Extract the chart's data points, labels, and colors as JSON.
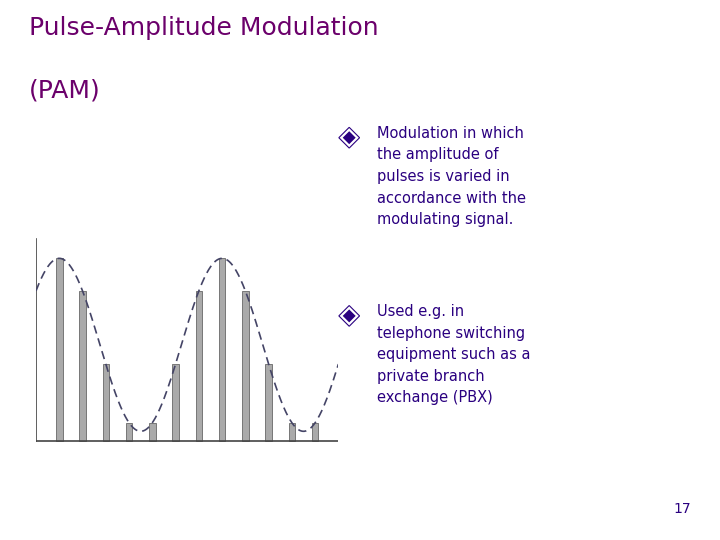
{
  "title_line1": "Pulse-Amplitude Modulation",
  "title_line2": "(PAM)",
  "title_color": "#6B006B",
  "title_fontsize": 18,
  "bg_color": "#FFFFFF",
  "bullet_color": "#2A0080",
  "text_color": "#2A0080",
  "bullet1_lines": [
    "Modulation in which",
    "the amplitude of",
    "pulses is varied in",
    "accordance with the",
    "modulating signal."
  ],
  "bullet2_lines": [
    "Used e.g. in",
    "telephone switching",
    "equipment such as a",
    "private branch",
    "exchange (PBX)"
  ],
  "page_number": "17",
  "signal_color": "#AAAAAA",
  "signal_edge_color": "#777777",
  "curve_color": "#444466",
  "axis_color": "#444444"
}
